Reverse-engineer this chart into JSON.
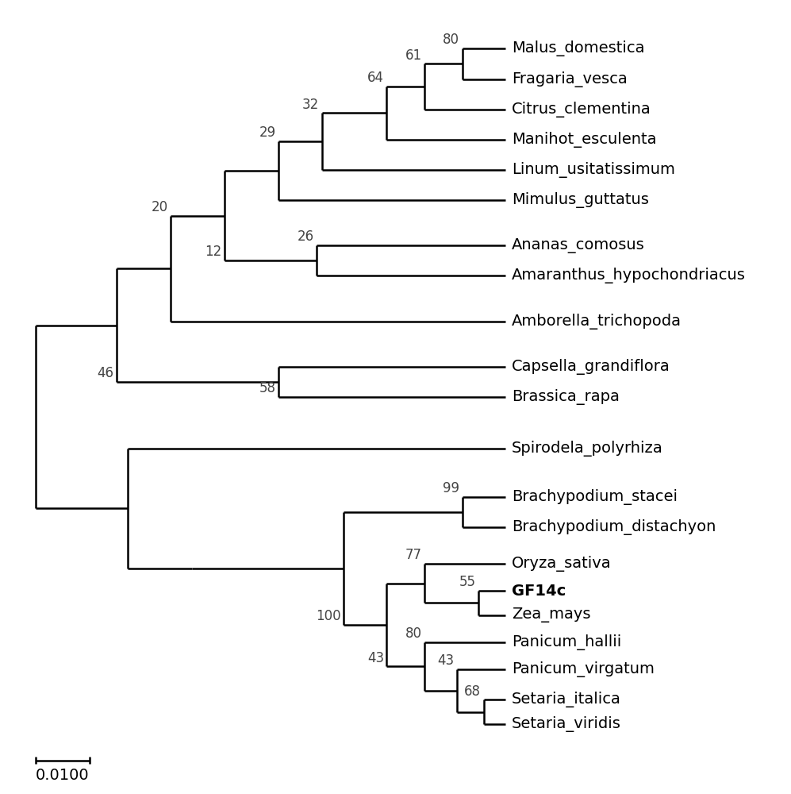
{
  "taxa": [
    "Malus_domestica",
    "Fragaria_vesca",
    "Citrus_clementina",
    "Manihot_esculenta",
    "Linum_usitatissimum",
    "Mimulus_guttatus",
    "Ananas_comosus",
    "Amaranthus_hypochondriacus",
    "Amborella_trichopoda",
    "Capsella_grandiflora",
    "Brassica_rapa",
    "Spirodela_polyrhiza",
    "Brachypodium_stacei",
    "Brachypodium_distachyon",
    "Oryza_sativa",
    "GF14c",
    "Zea_mays",
    "Panicum_hallii",
    "Panicum_virgatum",
    "Setaria_italica",
    "Setaria_viridis"
  ],
  "bold_taxa": [
    "GF14c"
  ],
  "background_color": "#ffffff",
  "line_color": "#000000",
  "scalebar_label": "0.0100",
  "font_size": 14,
  "bootstrap_font_size": 12,
  "leaf_y": {
    "Malus_domestica": 20,
    "Fragaria_vesca": 19,
    "Citrus_clementina": 18,
    "Manihot_esculenta": 17,
    "Linum_usitatissimum": 16,
    "Mimulus_guttatus": 15,
    "Ananas_comosus": 13.5,
    "Amaranthus_hypochondriacus": 12.5,
    "Amborella_trichopoda": 11,
    "Capsella_grandiflora": 9.5,
    "Brassica_rapa": 8.5,
    "Spirodela_polyrhiza": 6.8,
    "Brachypodium_stacei": 5.2,
    "Brachypodium_distachyon": 4.2,
    "Oryza_sativa": 3.0,
    "GF14c": 2.1,
    "Zea_mays": 1.3,
    "Panicum_hallii": 0.4,
    "Panicum_virgatum": -0.5,
    "Setaria_italica": -1.5,
    "Setaria_viridis": -2.3
  },
  "leaf_x": {
    "Malus_domestica": 9.0,
    "Fragaria_vesca": 9.0,
    "Citrus_clementina": 9.0,
    "Manihot_esculenta": 9.0,
    "Linum_usitatissimum": 9.0,
    "Mimulus_guttatus": 9.0,
    "Ananas_comosus": 9.0,
    "Amaranthus_hypochondriacus": 9.0,
    "Amborella_trichopoda": 9.0,
    "Capsella_grandiflora": 9.0,
    "Brassica_rapa": 9.0,
    "Spirodela_polyrhiza": 9.0,
    "Brachypodium_stacei": 9.0,
    "Brachypodium_distachyon": 9.0,
    "Oryza_sativa": 9.0,
    "GF14c": 9.0,
    "Zea_mays": 9.0,
    "Panicum_hallii": 9.0,
    "Panicum_virgatum": 9.0,
    "Setaria_italica": 9.0,
    "Setaria_viridis": 9.0
  }
}
